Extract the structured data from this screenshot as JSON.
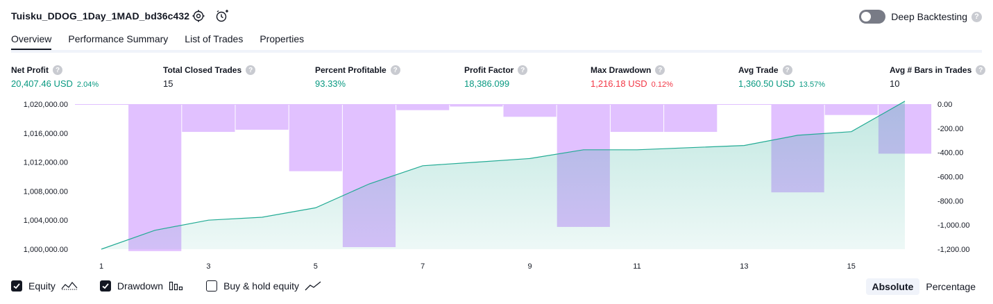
{
  "header": {
    "title": "Tuisku_DDOG_1Day_1MAD_bd36c432",
    "deep_backtesting_label": "Deep Backtesting",
    "help_glyph": "?"
  },
  "tabs": [
    {
      "label": "Overview",
      "active": true
    },
    {
      "label": "Performance Summary",
      "active": false
    },
    {
      "label": "List of Trades",
      "active": false
    },
    {
      "label": "Properties",
      "active": false
    }
  ],
  "metrics": [
    {
      "label": "Net Profit",
      "value": "20,407.46 USD",
      "pct": "2.04%",
      "color": "#089981"
    },
    {
      "label": "Total Closed Trades",
      "value": "15",
      "pct": "",
      "color": "#131722"
    },
    {
      "label": "Percent Profitable",
      "value": "93.33%",
      "pct": "",
      "color": "#089981"
    },
    {
      "label": "Profit Factor",
      "value": "18,386.099",
      "pct": "",
      "color": "#089981"
    },
    {
      "label": "Max Drawdown",
      "value": "1,216.18 USD",
      "pct": "0.12%",
      "color": "#f23645"
    },
    {
      "label": "Avg Trade",
      "value": "1,360.50 USD",
      "pct": "13.57%",
      "color": "#089981"
    },
    {
      "label": "Avg # Bars in Trades",
      "value": "10",
      "pct": "",
      "color": "#131722"
    }
  ],
  "chart_data": {
    "type": "line",
    "x": [
      1,
      2,
      3,
      4,
      5,
      6,
      7,
      8,
      9,
      10,
      11,
      12,
      13,
      14,
      15,
      16
    ],
    "series": [
      {
        "name": "Equity",
        "axis": "left",
        "values": [
          1000000,
          1002600,
          1004000,
          1004400,
          1005700,
          1009000,
          1011500,
          1012000,
          1012500,
          1013700,
          1013700,
          1014000,
          1014300,
          1015700,
          1016200,
          1020400
        ]
      },
      {
        "name": "Drawdown",
        "axis": "right",
        "type": "bar",
        "values": [
          0,
          -1216,
          -230,
          -212,
          -555,
          -1183,
          -50,
          -20,
          -105,
          -1016,
          -230,
          -230,
          0,
          -730,
          -90,
          -410
        ]
      }
    ],
    "left_axis": {
      "ylim": [
        1000000,
        1020000
      ],
      "ticks": [
        "1,000,000.00",
        "1,004,000.00",
        "1,008,000.00",
        "1,012,000.00",
        "1,016,000.00",
        "1,020,000.00"
      ]
    },
    "right_axis": {
      "ylim": [
        -1200,
        0
      ],
      "ticks": [
        "0.00",
        "-200.00",
        "-400.00",
        "-600.00",
        "-800.00",
        "-1,000.00",
        "-1,200.00"
      ]
    },
    "x_ticks": [
      "1",
      "3",
      "5",
      "7",
      "9",
      "11",
      "13",
      "15"
    ],
    "colors": {
      "equity_line": "#22ab94",
      "equity_fill": "#22ab94",
      "drawdown": "#e1c1ff"
    },
    "grid": false
  },
  "legend": [
    {
      "label": "Equity",
      "checked": true,
      "icon": "equity-line-icon"
    },
    {
      "label": "Drawdown",
      "checked": true,
      "icon": "drawdown-bars-icon"
    },
    {
      "label": "Buy & hold equity",
      "checked": false,
      "icon": "buy-hold-line-icon"
    }
  ],
  "modes": [
    {
      "label": "Absolute",
      "selected": true
    },
    {
      "label": "Percentage",
      "selected": false
    }
  ]
}
